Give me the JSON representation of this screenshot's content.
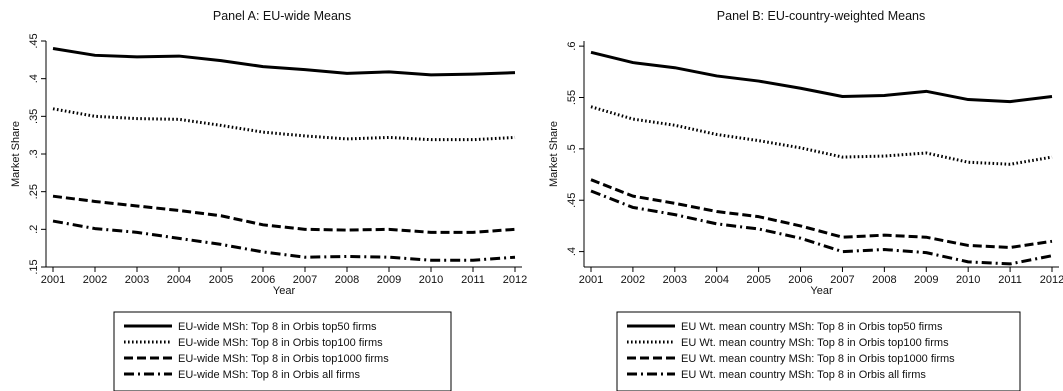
{
  "chart_data": [
    {
      "type": "line",
      "title": "Panel A: EU-wide Means",
      "xlabel": "Year",
      "ylabel": "Market Share",
      "x": [
        2001,
        2002,
        2003,
        2004,
        2005,
        2006,
        2007,
        2008,
        2009,
        2010,
        2011,
        2012
      ],
      "ylim": [
        0.15,
        0.45
      ],
      "yticks": [
        ".15",
        ".2",
        ".25",
        ".3",
        ".35",
        ".4",
        ".45"
      ],
      "ytick_values": [
        0.15,
        0.2,
        0.25,
        0.3,
        0.35,
        0.4,
        0.45
      ],
      "grid": false,
      "legend_position": "bottom",
      "series": [
        {
          "name": "EU-wide MSh: Top 8 in Orbis top50 firms",
          "style": "solid",
          "values": [
            0.44,
            0.431,
            0.429,
            0.43,
            0.424,
            0.416,
            0.412,
            0.407,
            0.409,
            0.405,
            0.406,
            0.408
          ]
        },
        {
          "name": "EU-wide MSh: Top 8 in Orbis top100 firms",
          "style": "dot",
          "values": [
            0.36,
            0.35,
            0.347,
            0.346,
            0.338,
            0.329,
            0.324,
            0.32,
            0.322,
            0.319,
            0.319,
            0.322
          ]
        },
        {
          "name": "EU-wide MSh: Top 8 in Orbis top1000 firms",
          "style": "dash",
          "values": [
            0.244,
            0.237,
            0.231,
            0.225,
            0.218,
            0.206,
            0.2,
            0.199,
            0.2,
            0.196,
            0.196,
            0.2
          ]
        },
        {
          "name": "EU-wide MSh: Top 8 in Orbis all firms",
          "style": "dashdot",
          "values": [
            0.211,
            0.201,
            0.196,
            0.188,
            0.18,
            0.17,
            0.163,
            0.164,
            0.163,
            0.159,
            0.159,
            0.163
          ]
        }
      ]
    },
    {
      "type": "line",
      "title": "Panel B: EU-country-weighted Means",
      "xlabel": "Year",
      "ylabel": "Market Share",
      "x": [
        2001,
        2002,
        2003,
        2004,
        2005,
        2006,
        2007,
        2008,
        2009,
        2010,
        2011,
        2012
      ],
      "ylim": [
        0.385,
        0.605
      ],
      "yticks": [
        ".4",
        ".45",
        ".5",
        ".55",
        ".6"
      ],
      "ytick_values": [
        0.4,
        0.45,
        0.5,
        0.55,
        0.6
      ],
      "grid": false,
      "legend_position": "bottom",
      "series": [
        {
          "name": "EU Wt. mean country MSh: Top 8 in Orbis top50 firms",
          "style": "solid",
          "values": [
            0.594,
            0.584,
            0.579,
            0.571,
            0.566,
            0.559,
            0.551,
            0.552,
            0.556,
            0.548,
            0.546,
            0.551
          ]
        },
        {
          "name": "EU Wt. mean country MSh: Top 8 in Orbis top100 firms",
          "style": "dot",
          "values": [
            0.541,
            0.529,
            0.523,
            0.514,
            0.508,
            0.501,
            0.492,
            0.493,
            0.496,
            0.487,
            0.485,
            0.492
          ]
        },
        {
          "name": "EU Wt. mean country MSh: Top 8 in Orbis top1000 firms",
          "style": "dash",
          "values": [
            0.47,
            0.454,
            0.447,
            0.439,
            0.434,
            0.425,
            0.414,
            0.416,
            0.414,
            0.406,
            0.404,
            0.41
          ]
        },
        {
          "name": "EU Wt. mean country MSh: Top 8 in Orbis all firms",
          "style": "dashdot",
          "values": [
            0.459,
            0.443,
            0.436,
            0.427,
            0.422,
            0.413,
            0.4,
            0.402,
            0.399,
            0.39,
            0.388,
            0.396
          ]
        }
      ]
    }
  ]
}
